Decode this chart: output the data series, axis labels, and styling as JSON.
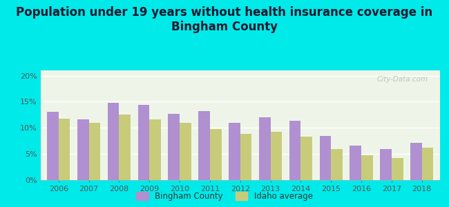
{
  "title": "Population under 19 years without health insurance coverage in\nBingham County",
  "years": [
    2006,
    2007,
    2008,
    2009,
    2010,
    2011,
    2012,
    2013,
    2014,
    2015,
    2016,
    2017,
    2018
  ],
  "bingham": [
    13.1,
    11.6,
    14.8,
    14.4,
    12.7,
    13.2,
    11.0,
    12.0,
    11.3,
    8.5,
    6.6,
    6.0,
    7.1
  ],
  "idaho": [
    11.7,
    11.0,
    12.6,
    11.6,
    11.0,
    9.8,
    8.8,
    9.2,
    8.3,
    5.9,
    4.7,
    4.2,
    6.2
  ],
  "bingham_color": "#b090d0",
  "idaho_color": "#c8cc7a",
  "background_outer": "#00eaea",
  "background_inner": "#eef5e8",
  "ylim": [
    0,
    21
  ],
  "yticks": [
    0,
    5,
    10,
    15,
    20
  ],
  "bar_width": 0.38,
  "legend_bingham": "Bingham County",
  "legend_idaho": "Idaho average",
  "title_fontsize": 12,
  "watermark": "City-Data.com"
}
